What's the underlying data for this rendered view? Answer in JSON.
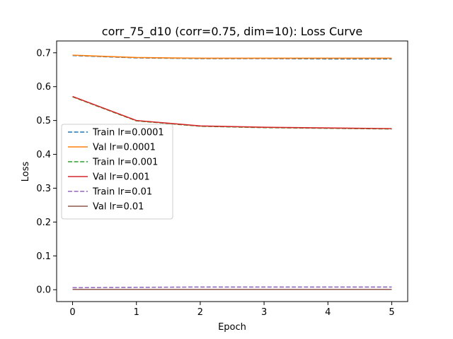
{
  "chart_data": {
    "type": "line",
    "title": "corr_75_d10 (corr=0.75, dim=10): Loss Curve",
    "xlabel": "Epoch",
    "ylabel": "Loss",
    "xlim": [
      -0.25,
      5.25
    ],
    "ylim": [
      -0.035,
      0.735
    ],
    "xticks": [
      0,
      1,
      2,
      3,
      4,
      5
    ],
    "yticks": [
      0.0,
      0.1,
      0.2,
      0.3,
      0.4,
      0.5,
      0.6,
      0.7
    ],
    "ytick_labels": [
      "0.0",
      "0.1",
      "0.2",
      "0.3",
      "0.4",
      "0.5",
      "0.6",
      "0.7"
    ],
    "grid": false,
    "legend": "center-left",
    "x": [
      0,
      1,
      2,
      3,
      4,
      5
    ],
    "series": [
      {
        "name": "Train lr=0.0001",
        "color": "#1f77b4",
        "dash": true,
        "values": [
          0.692,
          0.685,
          0.683,
          0.683,
          0.682,
          0.682
        ]
      },
      {
        "name": "Val lr=0.0001",
        "color": "#ff7f0e",
        "dash": false,
        "values": [
          0.693,
          0.686,
          0.684,
          0.684,
          0.684,
          0.684
        ]
      },
      {
        "name": "Train lr=0.001",
        "color": "#2ca02c",
        "dash": true,
        "values": [
          0.57,
          0.499,
          0.483,
          0.479,
          0.477,
          0.475
        ]
      },
      {
        "name": "Val lr=0.001",
        "color": "#d62728",
        "dash": false,
        "values": [
          0.571,
          0.5,
          0.484,
          0.48,
          0.478,
          0.476
        ]
      },
      {
        "name": "Train lr=0.01",
        "color": "#9467bd",
        "dash": true,
        "values": [
          0.006,
          0.007,
          0.008,
          0.008,
          0.008,
          0.008
        ]
      },
      {
        "name": "Val lr=0.01",
        "color": "#8c564b",
        "dash": false,
        "values": [
          0.001,
          0.001,
          0.001,
          0.001,
          0.001,
          0.001
        ]
      }
    ]
  }
}
